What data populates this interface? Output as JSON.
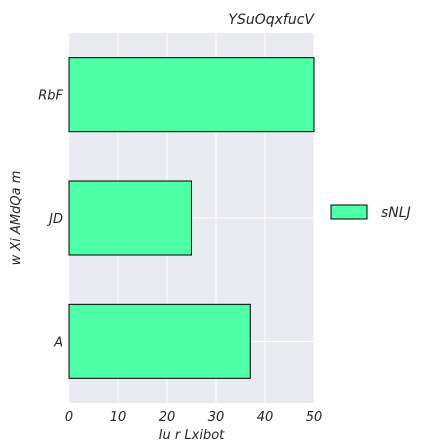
{
  "chart_data": {
    "type": "bar",
    "orientation": "horizontal",
    "title": "YSuOqxfucV",
    "xlabel": "Iu r Lxibot",
    "ylabel": "w Xi AMdQa m",
    "categories": [
      "RbF",
      "JD",
      "A"
    ],
    "series": [
      {
        "name": "sNLJ",
        "values": [
          50,
          25,
          37
        ]
      }
    ],
    "xlim": [
      0,
      50
    ],
    "xticks": [
      0,
      10,
      20,
      30,
      40,
      50
    ],
    "grid": true,
    "legend": "right",
    "colors": {
      "bar": "#4dffa6",
      "bar_edge": "#000000",
      "plot_background": "#eaeaf2",
      "grid": "#ffffff"
    }
  }
}
